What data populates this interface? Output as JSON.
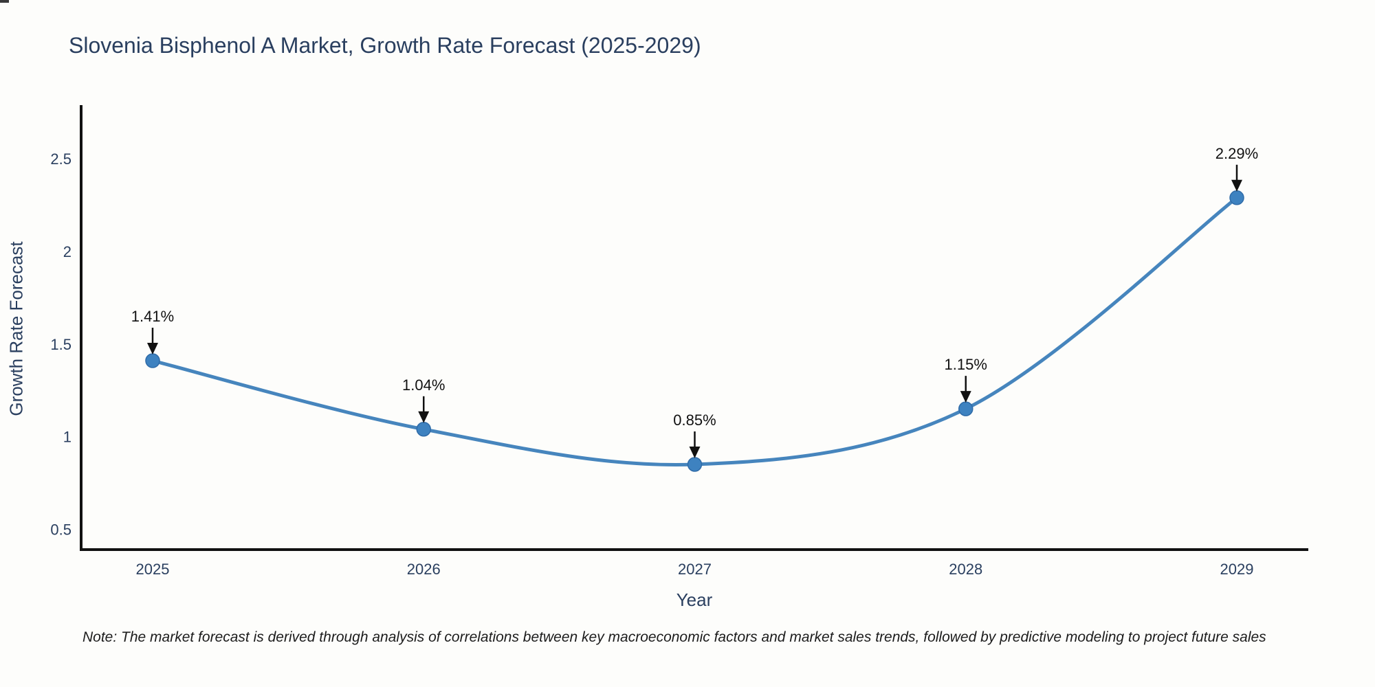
{
  "header": {
    "title": "Slovenia Bisphenol A Market, Growth Rate Forecast (2025-2029)"
  },
  "footnote": "Note: The market forecast is derived through analysis of correlations between key macroeconomic factors and market sales trends, followed by predictive modeling to project future sales",
  "colors": {
    "background": "#fdfdfb",
    "line": "#4685bd",
    "marker_fill": "#3e82c0",
    "marker_stroke": "#2f6ba8",
    "axis": "#111111",
    "title_text": "#2a3f5f",
    "tick_text": "#2a3f5f",
    "annotation_text": "#111111",
    "annotation_arrow": "#111111",
    "note_text": "#1c1c1c"
  },
  "chart_data": {
    "type": "line",
    "line_shape": "spline",
    "title": "Slovenia Bisphenol A Market, Growth Rate Forecast (2025-2029)",
    "xlabel": "Year",
    "ylabel": "Growth Rate Forecast",
    "categories": [
      "2025",
      "2026",
      "2027",
      "2028",
      "2029"
    ],
    "values": [
      1.41,
      1.04,
      0.85,
      1.15,
      2.29
    ],
    "point_labels": [
      "1.41%",
      "1.04%",
      "0.85%",
      "1.15%",
      "2.29%"
    ],
    "yticks": [
      0.5,
      1,
      1.5,
      2,
      2.5
    ],
    "ytick_labels": [
      "0.5",
      "1",
      "1.5",
      "2",
      "2.5"
    ],
    "ylim": [
      0.39,
      2.79
    ],
    "grid": false,
    "legend": false,
    "annotations": "each data point labeled with its percent value above a downward-pointing black arrow"
  }
}
